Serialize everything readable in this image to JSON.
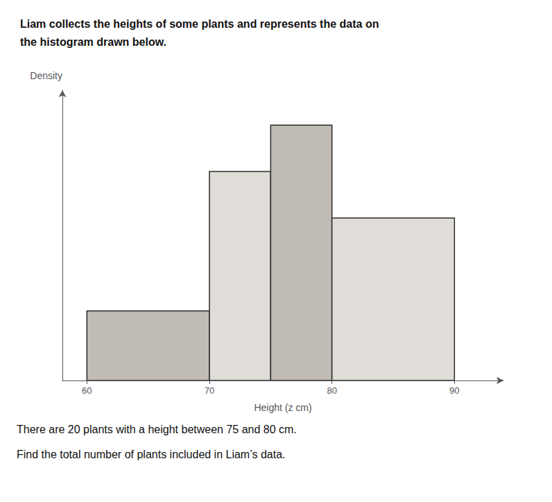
{
  "chart_data": {
    "type": "histogram",
    "title": "Liam collects the heights of some plants and represents the data on\nthe histogram drawn below.",
    "annotations": [
      "There are 20 plants with a height between 75 and 80 cm.",
      "Find the total number of plants included in Liam’s data."
    ],
    "xlabel": "Height (z cm)",
    "ylabel": "Density",
    "bins": [
      60,
      70,
      75,
      80,
      90
    ],
    "values": [
      3,
      9,
      11,
      7
    ],
    "colors": [
      "#c0bbb5",
      "#e0dcd8",
      "#c0bbb5",
      "#e0dcd8"
    ],
    "xlim": [
      58,
      94
    ],
    "xticks": [
      60,
      70,
      80,
      90
    ],
    "ylim": [
      0,
      12.5
    ],
    "tick_labels": "x",
    "grid": false
  }
}
